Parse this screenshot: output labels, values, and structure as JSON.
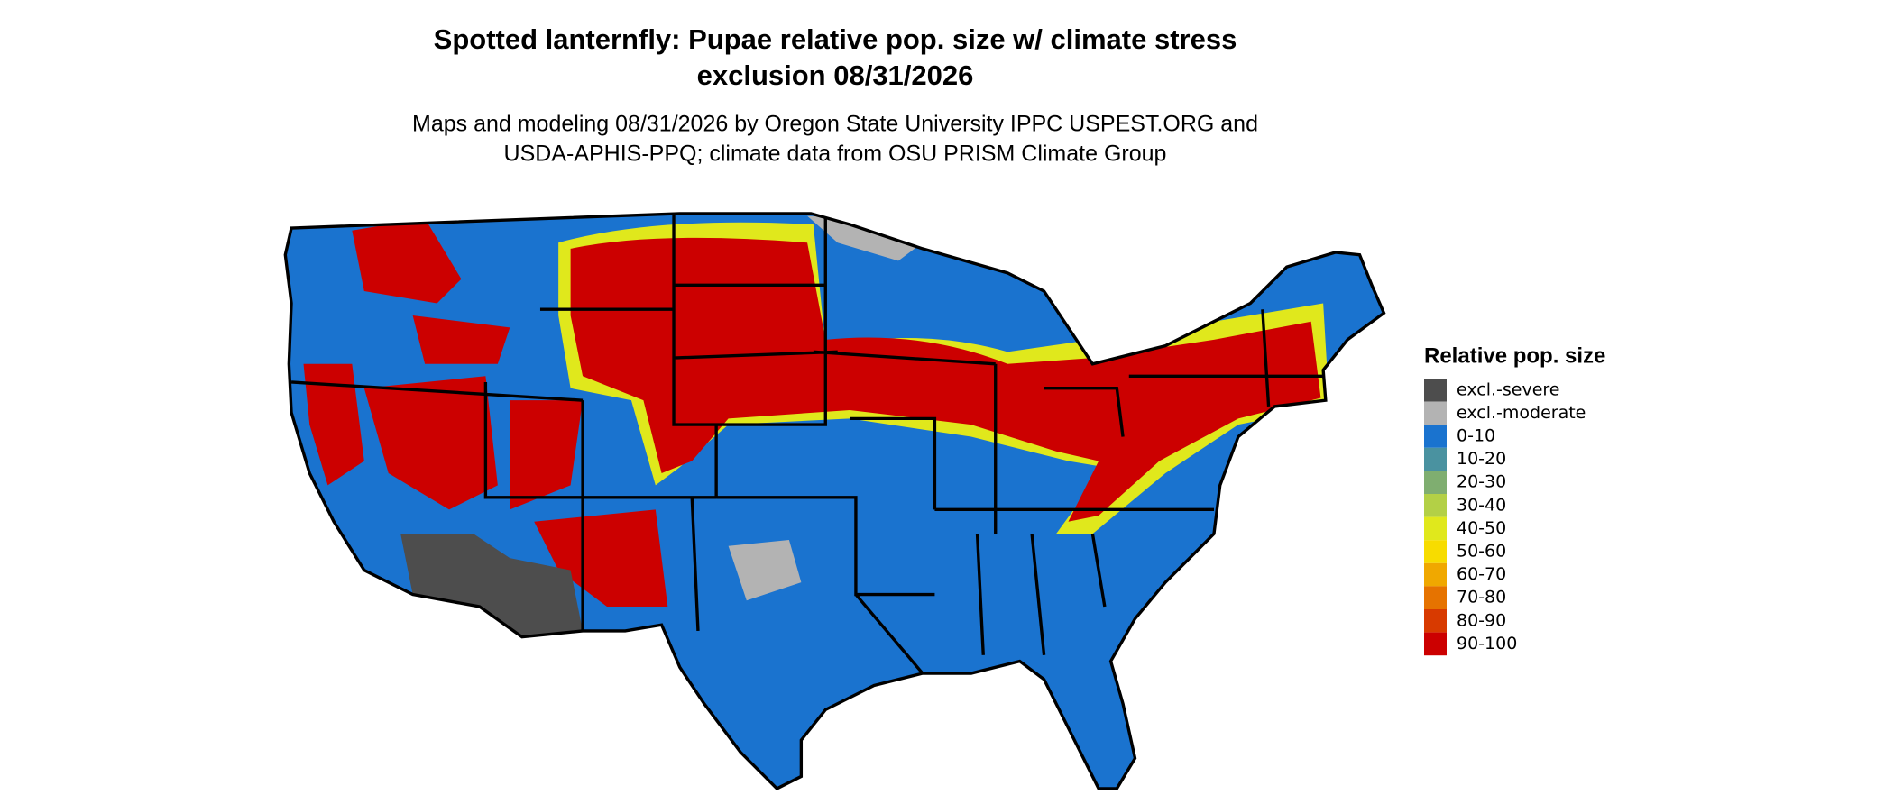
{
  "header": {
    "title": [
      "Spotted lanternfly: Pupae relative pop. size w/ climate stress",
      "exclusion 08/31/2026"
    ],
    "subtitle": [
      "Maps and modeling 08/31/2026 by Oregon State University IPPC USPEST.ORG and",
      "USDA-APHIS-PPQ; climate data from OSU PRISM Climate Group"
    ]
  },
  "legend": {
    "title": "Relative pop. size",
    "items": [
      {
        "label": "excl.-severe",
        "color": "#4d4d4d"
      },
      {
        "label": "excl.-moderate",
        "color": "#b3b3b3"
      },
      {
        "label": "0-10",
        "color": "#1a73cf"
      },
      {
        "label": "10-20",
        "color": "#4a92a0"
      },
      {
        "label": "20-30",
        "color": "#7fae70"
      },
      {
        "label": "30-40",
        "color": "#b3d046"
      },
      {
        "label": "40-50",
        "color": "#e0e81c"
      },
      {
        "label": "50-60",
        "color": "#f7dc00"
      },
      {
        "label": "60-70",
        "color": "#f0a800"
      },
      {
        "label": "70-80",
        "color": "#e67300"
      },
      {
        "label": "80-90",
        "color": "#d83a00"
      },
      {
        "label": "90-100",
        "color": "#cc0000"
      }
    ]
  }
}
